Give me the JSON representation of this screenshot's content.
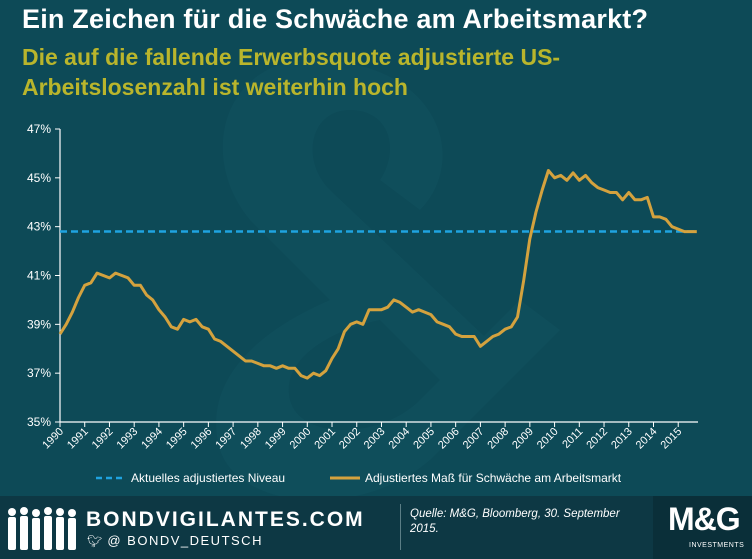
{
  "header": {
    "title": "Ein Zeichen für die Schwäche am Arbeitsmarkt?",
    "subtitle": "Die auf die fallende Erwerbsquote adjustierte US-Arbeitslosenzahl ist weiterhin hoch"
  },
  "footer": {
    "brand": "BONDVIGILANTES.COM",
    "twitter": "@ BONDV_DEUTSCH",
    "source": "Quelle: M&G, Bloomberg, 30. September 2015.",
    "logo": "M&G",
    "logo_sub": "INVESTMENTS"
  },
  "colors": {
    "background": "#0d4a57",
    "title": "#ffffff",
    "subtitle": "#b9b52c",
    "series_line": "#d4a23e",
    "level_line": "#1fa3e0"
  },
  "chart_data": {
    "type": "line",
    "ylim": [
      35,
      47
    ],
    "xlim": [
      1990,
      2015.8
    ],
    "y_ticks": [
      35,
      37,
      39,
      41,
      43,
      45,
      47
    ],
    "y_tick_labels": [
      "35%",
      "37%",
      "39%",
      "41%",
      "43%",
      "45%",
      "47%"
    ],
    "x_ticks": [
      1990,
      1991,
      1992,
      1993,
      1994,
      1995,
      1996,
      1997,
      1998,
      1999,
      2000,
      2001,
      2002,
      2003,
      2004,
      2005,
      2006,
      2007,
      2008,
      2009,
      2010,
      2011,
      2012,
      2013,
      2014,
      2015
    ],
    "x_tick_labels": [
      "1990",
      "1991",
      "1992",
      "1993",
      "1994",
      "1995",
      "1996",
      "1997",
      "1998",
      "1999",
      "2000",
      "2001",
      "2002",
      "2003",
      "2004",
      "2005",
      "2006",
      "2007",
      "2008",
      "2009",
      "2010",
      "2011",
      "2012",
      "2013",
      "2014",
      "2015"
    ],
    "grid": false,
    "legend_position": "bottom",
    "series": [
      {
        "name": "Aktuelles adjustiertes Niveau",
        "style": "dashed",
        "x": [
          1990,
          2015.75
        ],
        "y": [
          42.8,
          42.8
        ]
      },
      {
        "name": "Adjustiertes Maß für Schwäche am Arbeitsmarkt",
        "style": "solid",
        "x": [
          1990.0,
          1990.25,
          1990.5,
          1990.75,
          1991.0,
          1991.25,
          1991.5,
          1991.75,
          1992.0,
          1992.25,
          1992.5,
          1992.75,
          1993.0,
          1993.25,
          1993.5,
          1993.75,
          1994.0,
          1994.25,
          1994.5,
          1994.75,
          1995.0,
          1995.25,
          1995.5,
          1995.75,
          1996.0,
          1996.25,
          1996.5,
          1996.75,
          1997.0,
          1997.25,
          1997.5,
          1997.75,
          1998.0,
          1998.25,
          1998.5,
          1998.75,
          1999.0,
          1999.25,
          1999.5,
          1999.75,
          2000.0,
          2000.25,
          2000.5,
          2000.75,
          2001.0,
          2001.25,
          2001.5,
          2001.75,
          2002.0,
          2002.25,
          2002.5,
          2002.75,
          2003.0,
          2003.25,
          2003.5,
          2003.75,
          2004.0,
          2004.25,
          2004.5,
          2004.75,
          2005.0,
          2005.25,
          2005.5,
          2005.75,
          2006.0,
          2006.25,
          2006.5,
          2006.75,
          2007.0,
          2007.25,
          2007.5,
          2007.75,
          2008.0,
          2008.25,
          2008.5,
          2008.75,
          2009.0,
          2009.25,
          2009.5,
          2009.75,
          2010.0,
          2010.25,
          2010.5,
          2010.75,
          2011.0,
          2011.25,
          2011.5,
          2011.75,
          2012.0,
          2012.25,
          2012.5,
          2012.75,
          2013.0,
          2013.25,
          2013.5,
          2013.75,
          2014.0,
          2014.25,
          2014.5,
          2014.75,
          2015.0,
          2015.25,
          2015.5,
          2015.75
        ],
        "y": [
          38.6,
          39.0,
          39.5,
          40.1,
          40.6,
          40.7,
          41.1,
          41.0,
          40.9,
          41.1,
          41.0,
          40.9,
          40.6,
          40.6,
          40.2,
          40.0,
          39.6,
          39.3,
          38.9,
          38.8,
          39.2,
          39.1,
          39.2,
          38.9,
          38.8,
          38.4,
          38.3,
          38.1,
          37.9,
          37.7,
          37.5,
          37.5,
          37.4,
          37.3,
          37.3,
          37.2,
          37.3,
          37.2,
          37.2,
          36.9,
          36.8,
          37.0,
          36.9,
          37.1,
          37.6,
          38.0,
          38.7,
          39.0,
          39.1,
          39.0,
          39.6,
          39.6,
          39.6,
          39.7,
          40.0,
          39.9,
          39.7,
          39.5,
          39.6,
          39.5,
          39.4,
          39.1,
          39.0,
          38.9,
          38.6,
          38.5,
          38.5,
          38.5,
          38.1,
          38.3,
          38.5,
          38.6,
          38.8,
          38.9,
          39.3,
          40.8,
          42.5,
          43.6,
          44.5,
          45.3,
          45.0,
          45.1,
          44.9,
          45.2,
          44.9,
          45.1,
          44.8,
          44.6,
          44.5,
          44.4,
          44.4,
          44.1,
          44.4,
          44.1,
          44.1,
          44.2,
          43.4,
          43.4,
          43.3,
          43.0,
          42.9,
          42.8,
          42.8,
          42.8
        ]
      }
    ]
  }
}
